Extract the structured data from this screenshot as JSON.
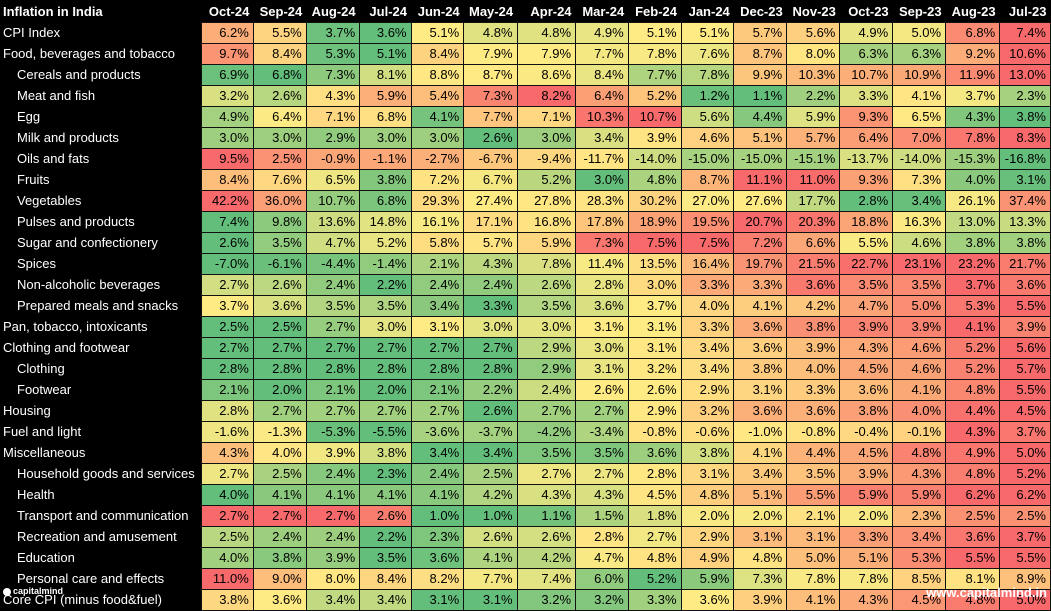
{
  "chart_data": {
    "type": "table",
    "title": "Inflation in India",
    "columns": [
      "Oct-24",
      "Sep-24",
      "Aug-24",
      "Jul-24",
      "Jun-24",
      "May-24",
      "Apr-24",
      "Mar-24",
      "Feb-24",
      "Jan-24",
      "Dec-23",
      "Nov-23",
      "Oct-23",
      "Sep-23",
      "Aug-23",
      "Jul-23"
    ],
    "rows": [
      {
        "label": "CPI Index",
        "indent": 0,
        "values": [
          "6.2%",
          "5.5%",
          "3.7%",
          "3.6%",
          "5.1%",
          "4.8%",
          "4.8%",
          "4.9%",
          "5.1%",
          "5.1%",
          "5.7%",
          "5.6%",
          "4.9%",
          "5.0%",
          "6.8%",
          "7.4%"
        ]
      },
      {
        "label": "Food, beverages and tobacco",
        "indent": 0,
        "values": [
          "9.7%",
          "8.4%",
          "5.3%",
          "5.1%",
          "8.4%",
          "7.9%",
          "7.9%",
          "7.7%",
          "7.8%",
          "7.6%",
          "8.7%",
          "8.0%",
          "6.3%",
          "6.3%",
          "9.2%",
          "10.6%"
        ]
      },
      {
        "label": "Cereals and products",
        "indent": 1,
        "values": [
          "6.9%",
          "6.8%",
          "7.3%",
          "8.1%",
          "8.8%",
          "8.7%",
          "8.6%",
          "8.4%",
          "7.7%",
          "7.8%",
          "9.9%",
          "10.3%",
          "10.7%",
          "10.9%",
          "11.9%",
          "13.0%"
        ]
      },
      {
        "label": "Meat and fish",
        "indent": 1,
        "values": [
          "3.2%",
          "2.6%",
          "4.3%",
          "5.9%",
          "5.4%",
          "7.3%",
          "8.2%",
          "6.4%",
          "5.2%",
          "1.2%",
          "1.1%",
          "2.2%",
          "3.3%",
          "4.1%",
          "3.7%",
          "2.3%"
        ]
      },
      {
        "label": "Egg",
        "indent": 1,
        "values": [
          "4.9%",
          "6.4%",
          "7.1%",
          "6.8%",
          "4.1%",
          "7.7%",
          "7.1%",
          "10.3%",
          "10.7%",
          "5.6%",
          "4.4%",
          "5.9%",
          "9.3%",
          "6.5%",
          "4.3%",
          "3.8%"
        ]
      },
      {
        "label": "Milk and products",
        "indent": 1,
        "values": [
          "3.0%",
          "3.0%",
          "2.9%",
          "3.0%",
          "3.0%",
          "2.6%",
          "3.0%",
          "3.4%",
          "3.9%",
          "4.6%",
          "5.1%",
          "5.7%",
          "6.4%",
          "7.0%",
          "7.8%",
          "8.3%"
        ]
      },
      {
        "label": "Oils and fats",
        "indent": 1,
        "values": [
          "9.5%",
          "2.5%",
          "-0.9%",
          "-1.1%",
          "-2.7%",
          "-6.7%",
          "-9.4%",
          "-11.7%",
          "-14.0%",
          "-15.0%",
          "-15.0%",
          "-15.1%",
          "-13.7%",
          "-14.0%",
          "-15.3%",
          "-16.8%"
        ]
      },
      {
        "label": "Fruits",
        "indent": 1,
        "values": [
          "8.4%",
          "7.6%",
          "6.5%",
          "3.8%",
          "7.2%",
          "6.7%",
          "5.2%",
          "3.0%",
          "4.8%",
          "8.7%",
          "11.1%",
          "11.0%",
          "9.3%",
          "7.3%",
          "4.0%",
          "3.1%"
        ]
      },
      {
        "label": "Vegetables",
        "indent": 1,
        "values": [
          "42.2%",
          "36.0%",
          "10.7%",
          "6.8%",
          "29.3%",
          "27.4%",
          "27.8%",
          "28.3%",
          "30.2%",
          "27.0%",
          "27.6%",
          "17.7%",
          "2.8%",
          "3.4%",
          "26.1%",
          "37.4%"
        ]
      },
      {
        "label": "Pulses and products",
        "indent": 1,
        "values": [
          "7.4%",
          "9.8%",
          "13.6%",
          "14.8%",
          "16.1%",
          "17.1%",
          "16.8%",
          "17.8%",
          "18.9%",
          "19.5%",
          "20.7%",
          "20.3%",
          "18.8%",
          "16.3%",
          "13.0%",
          "13.3%"
        ]
      },
      {
        "label": "Sugar and confectionery",
        "indent": 1,
        "values": [
          "2.6%",
          "3.5%",
          "4.7%",
          "5.2%",
          "5.8%",
          "5.7%",
          "5.9%",
          "7.3%",
          "7.5%",
          "7.5%",
          "7.2%",
          "6.6%",
          "5.5%",
          "4.6%",
          "3.8%",
          "3.8%"
        ]
      },
      {
        "label": "Spices",
        "indent": 1,
        "values": [
          "-7.0%",
          "-6.1%",
          "-4.4%",
          "-1.4%",
          "2.1%",
          "4.3%",
          "7.8%",
          "11.4%",
          "13.5%",
          "16.4%",
          "19.7%",
          "21.5%",
          "22.7%",
          "23.1%",
          "23.2%",
          "21.7%"
        ]
      },
      {
        "label": "Non-alcoholic beverages",
        "indent": 1,
        "values": [
          "2.7%",
          "2.6%",
          "2.4%",
          "2.2%",
          "2.4%",
          "2.4%",
          "2.6%",
          "2.8%",
          "3.0%",
          "3.3%",
          "3.3%",
          "3.6%",
          "3.5%",
          "3.5%",
          "3.7%",
          "3.6%"
        ]
      },
      {
        "label": "Prepared meals and snacks",
        "indent": 1,
        "values": [
          "3.7%",
          "3.6%",
          "3.5%",
          "3.5%",
          "3.4%",
          "3.3%",
          "3.5%",
          "3.6%",
          "3.7%",
          "4.0%",
          "4.1%",
          "4.2%",
          "4.7%",
          "5.0%",
          "5.3%",
          "5.5%"
        ]
      },
      {
        "label": "Pan, tobacco, intoxicants",
        "indent": 0,
        "values": [
          "2.5%",
          "2.5%",
          "2.7%",
          "3.0%",
          "3.1%",
          "3.0%",
          "3.0%",
          "3.1%",
          "3.1%",
          "3.3%",
          "3.6%",
          "3.8%",
          "3.9%",
          "3.9%",
          "4.1%",
          "3.9%"
        ]
      },
      {
        "label": "Clothing and footwear",
        "indent": 0,
        "values": [
          "2.7%",
          "2.7%",
          "2.7%",
          "2.7%",
          "2.7%",
          "2.7%",
          "2.9%",
          "3.0%",
          "3.1%",
          "3.4%",
          "3.6%",
          "3.9%",
          "4.3%",
          "4.6%",
          "5.2%",
          "5.6%"
        ]
      },
      {
        "label": "Clothing",
        "indent": 1,
        "values": [
          "2.8%",
          "2.8%",
          "2.8%",
          "2.8%",
          "2.8%",
          "2.8%",
          "2.9%",
          "3.1%",
          "3.2%",
          "3.4%",
          "3.8%",
          "4.0%",
          "4.5%",
          "4.6%",
          "5.2%",
          "5.7%"
        ]
      },
      {
        "label": "Footwear",
        "indent": 1,
        "values": [
          "2.1%",
          "2.0%",
          "2.1%",
          "2.0%",
          "2.1%",
          "2.2%",
          "2.4%",
          "2.6%",
          "2.6%",
          "2.9%",
          "3.1%",
          "3.3%",
          "3.6%",
          "4.1%",
          "4.8%",
          "5.5%"
        ]
      },
      {
        "label": "Housing",
        "indent": 0,
        "values": [
          "2.8%",
          "2.7%",
          "2.7%",
          "2.7%",
          "2.7%",
          "2.6%",
          "2.7%",
          "2.7%",
          "2.9%",
          "3.2%",
          "3.6%",
          "3.6%",
          "3.8%",
          "4.0%",
          "4.4%",
          "4.5%"
        ]
      },
      {
        "label": "Fuel and light",
        "indent": 0,
        "values": [
          "-1.6%",
          "-1.3%",
          "-5.3%",
          "-5.5%",
          "-3.6%",
          "-3.7%",
          "-4.2%",
          "-3.4%",
          "-0.8%",
          "-0.6%",
          "-1.0%",
          "-0.8%",
          "-0.4%",
          "-0.1%",
          "4.3%",
          "3.7%"
        ]
      },
      {
        "label": "Miscellaneous",
        "indent": 0,
        "values": [
          "4.3%",
          "4.0%",
          "3.9%",
          "3.8%",
          "3.4%",
          "3.4%",
          "3.5%",
          "3.5%",
          "3.6%",
          "3.8%",
          "4.1%",
          "4.4%",
          "4.5%",
          "4.8%",
          "4.9%",
          "5.0%"
        ]
      },
      {
        "label": "Household goods and services",
        "indent": 1,
        "values": [
          "2.7%",
          "2.5%",
          "2.4%",
          "2.3%",
          "2.4%",
          "2.5%",
          "2.7%",
          "2.7%",
          "2.8%",
          "3.1%",
          "3.4%",
          "3.5%",
          "3.9%",
          "4.3%",
          "4.8%",
          "5.2%"
        ]
      },
      {
        "label": "Health",
        "indent": 1,
        "values": [
          "4.0%",
          "4.1%",
          "4.1%",
          "4.1%",
          "4.1%",
          "4.2%",
          "4.3%",
          "4.3%",
          "4.5%",
          "4.8%",
          "5.1%",
          "5.5%",
          "5.9%",
          "5.9%",
          "6.2%",
          "6.2%"
        ]
      },
      {
        "label": "Transport and communication",
        "indent": 1,
        "values": [
          "2.7%",
          "2.7%",
          "2.7%",
          "2.6%",
          "1.0%",
          "1.0%",
          "1.1%",
          "1.5%",
          "1.8%",
          "2.0%",
          "2.0%",
          "2.1%",
          "2.0%",
          "2.3%",
          "2.5%",
          "2.5%"
        ]
      },
      {
        "label": "Recreation and amusement",
        "indent": 1,
        "values": [
          "2.5%",
          "2.4%",
          "2.4%",
          "2.2%",
          "2.3%",
          "2.6%",
          "2.6%",
          "2.8%",
          "2.7%",
          "2.9%",
          "3.1%",
          "3.1%",
          "3.3%",
          "3.4%",
          "3.6%",
          "3.7%"
        ]
      },
      {
        "label": "Education",
        "indent": 1,
        "values": [
          "4.0%",
          "3.8%",
          "3.9%",
          "3.5%",
          "3.6%",
          "4.1%",
          "4.2%",
          "4.7%",
          "4.8%",
          "4.9%",
          "4.8%",
          "5.0%",
          "5.1%",
          "5.3%",
          "5.5%",
          "5.5%"
        ]
      },
      {
        "label": "Personal care and effects",
        "indent": 1,
        "values": [
          "11.0%",
          "9.0%",
          "8.0%",
          "8.4%",
          "8.2%",
          "7.7%",
          "7.4%",
          "6.0%",
          "5.2%",
          "5.9%",
          "7.3%",
          "7.8%",
          "7.8%",
          "8.5%",
          "8.1%",
          "8.9%"
        ]
      },
      {
        "label": "Core CPI (minus food&fuel)",
        "indent": 0,
        "values": [
          "3.8%",
          "3.6%",
          "3.4%",
          "3.4%",
          "3.1%",
          "3.1%",
          "3.2%",
          "3.2%",
          "3.3%",
          "3.6%",
          "3.9%",
          "4.1%",
          "4.3%",
          "4.5%",
          "4.8%",
          "5.0%"
        ]
      }
    ],
    "color_scale": {
      "low": "#63be7b",
      "mid": "#ffeb84",
      "high": "#f8696b",
      "scope": "per-row"
    }
  },
  "footer": {
    "brand_left": "capitalmind",
    "brand_right": "www.capitalmind.in"
  }
}
